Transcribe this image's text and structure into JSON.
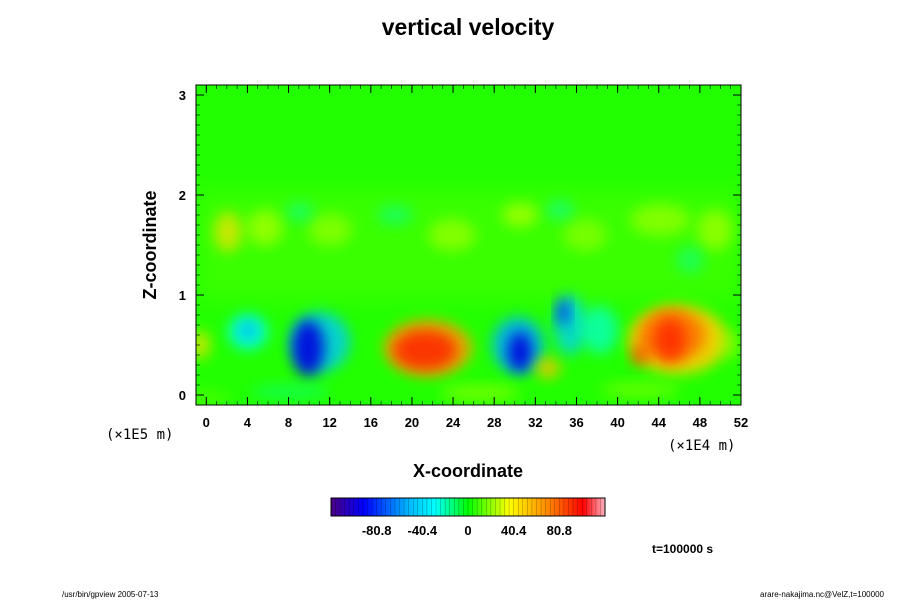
{
  "title": "vertical velocity",
  "chart_data": {
    "type": "heatmap",
    "title": "vertical velocity",
    "xlabel": "X-coordinate",
    "ylabel": "Z-coordinate",
    "x_unit": "(×1E4 m)",
    "z_unit": "(×1E5 m)",
    "xlim": [
      -1,
      52
    ],
    "ylim": [
      -0.1,
      3.1
    ],
    "x_ticks": [
      "0",
      "4",
      "8",
      "12",
      "16",
      "20",
      "24",
      "28",
      "32",
      "36",
      "40",
      "44",
      "48",
      "52"
    ],
    "y_ticks": [
      "0",
      "1",
      "2",
      "3"
    ],
    "colorbar": {
      "ticks": [
        "-80.8",
        "-40.4",
        "0",
        "40.4",
        "80.8"
      ],
      "range": [
        -121.2,
        121.2
      ]
    },
    "features": [
      {
        "x": 9.5,
        "z": 0.45,
        "value": -95
      },
      {
        "x": 22.0,
        "z": 0.48,
        "value": 85
      },
      {
        "x": 30.5,
        "z": 0.4,
        "value": -85
      },
      {
        "x": 34.5,
        "z": 0.75,
        "value": -60
      },
      {
        "x": 45.5,
        "z": 0.5,
        "value": 80
      },
      {
        "x": 3.0,
        "z": 0.55,
        "value": -35
      },
      {
        "x": 42.0,
        "z": 0.4,
        "value": 70
      },
      {
        "x": 2.0,
        "z": 1.6,
        "value": 30
      },
      {
        "x": 8.0,
        "z": 1.65,
        "value": 25
      },
      {
        "x": 38.0,
        "z": 1.5,
        "value": -20
      }
    ],
    "time_label": "t=100000 s"
  },
  "footer": {
    "left": "/usr/bin/gpview 2005-07-13",
    "right": "arare-nakajima.nc@VelZ,t=100000"
  }
}
